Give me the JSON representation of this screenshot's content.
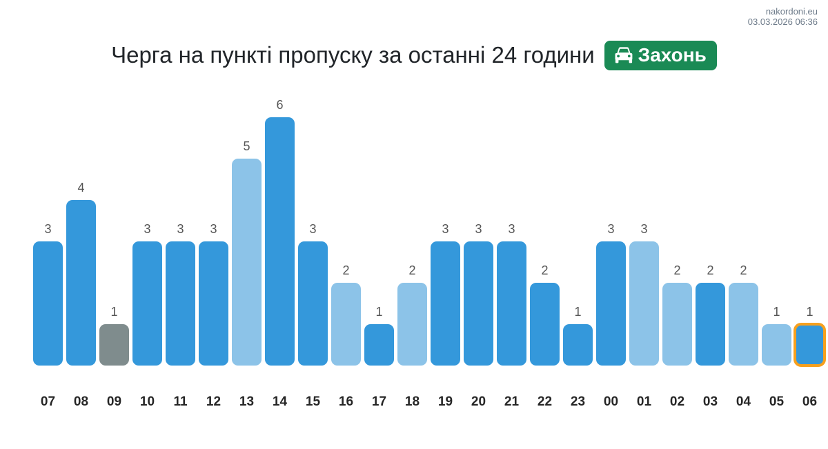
{
  "watermark": {
    "site": "nakordoni.eu",
    "datetime": "03.03.2026 06:36"
  },
  "header": {
    "title": "Черга на пункті пропуску за останні 24 години",
    "badge": {
      "icon": "car-icon",
      "label": "Захонь"
    }
  },
  "chart_data": {
    "type": "bar",
    "title": "Черга на пункті пропуску за останні 24 години",
    "xlabel": "",
    "ylabel": "",
    "ylim": [
      0,
      6.8
    ],
    "grid": false,
    "legend": "none",
    "categories": [
      "07",
      "08",
      "09",
      "10",
      "11",
      "12",
      "13",
      "14",
      "15",
      "16",
      "17",
      "18",
      "19",
      "20",
      "21",
      "22",
      "23",
      "00",
      "01",
      "02",
      "03",
      "04",
      "05",
      "06"
    ],
    "values": [
      3,
      4,
      1,
      3,
      3,
      3,
      5,
      6,
      3,
      2,
      1,
      2,
      3,
      3,
      3,
      2,
      1,
      3,
      3,
      2,
      2,
      2,
      1,
      1
    ],
    "bar_styles": [
      "blue",
      "blue",
      "gray",
      "blue",
      "blue",
      "blue",
      "light",
      "blue",
      "blue",
      "light",
      "blue",
      "light",
      "blue",
      "blue",
      "blue",
      "blue",
      "blue",
      "blue",
      "light",
      "light",
      "blue",
      "light",
      "light",
      "current"
    ],
    "value_labels_shown": true,
    "current_hour": "06"
  },
  "colors": {
    "bar_blue": "#3498db",
    "bar_light": "#8cc3e8",
    "bar_gray": "#7f8c8d",
    "current_border": "#f7a01d",
    "badge_bg": "#1a8a55",
    "title": "#212529",
    "xlabel": "#262626",
    "value": "#555555",
    "watermark": "#6c7a89"
  }
}
